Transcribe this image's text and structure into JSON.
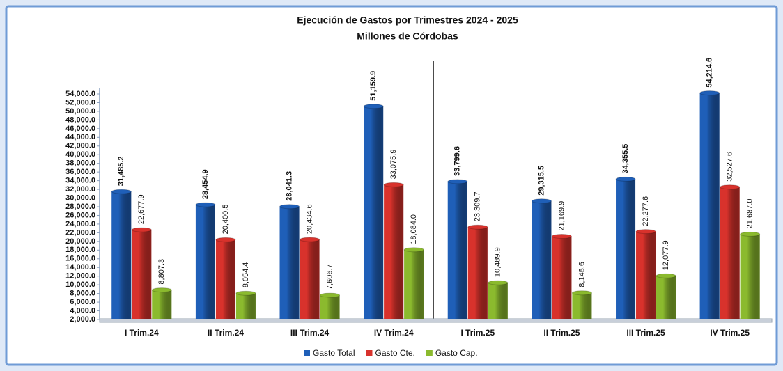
{
  "chart_data": {
    "type": "bar",
    "title": "Ejecución de  Gastos por Trimestres 2024 - 2025",
    "subtitle": "Millones de Córdobas",
    "categories": [
      "I Trim.24",
      "II Trim.24",
      "III Trim.24",
      "IV Trim.24",
      "I Trim.25",
      "II Trim.25",
      "III Trim.25",
      "IV Trim.25"
    ],
    "series": [
      {
        "name": "Gasto Total",
        "color": "#1f5fb8",
        "values": [
          31485.2,
          28454.9,
          28041.3,
          51159.9,
          33799.6,
          29315.5,
          34355.5,
          54214.6
        ],
        "value_labels": [
          "31,485.2",
          "28,454.9",
          "28,041.3",
          "51,159.9",
          "33,799.6",
          "29,315.5",
          "34,355.5",
          "54,214.6"
        ]
      },
      {
        "name": "Gasto Cte.",
        "color": "#d8322c",
        "values": [
          22677.9,
          20400.5,
          20434.6,
          33075.9,
          23309.7,
          21169.9,
          22277.6,
          32527.6
        ],
        "value_labels": [
          "22,677.9",
          "20,400.5",
          "20,434.6",
          "33,075.9",
          "23,309.7",
          "21,169.9",
          "22,277.6",
          "32,527.6"
        ]
      },
      {
        "name": "Gasto Cap.",
        "color": "#8bba2e",
        "values": [
          8807.3,
          8054.4,
          7606.7,
          18084.0,
          10489.9,
          8145.6,
          12077.9,
          21687.0
        ],
        "value_labels": [
          "8,807.3",
          "8,054.4",
          "7,606.7",
          "18,084.0",
          "10,489.9",
          "8,145.6",
          "12,077.9",
          "21,687.0"
        ]
      }
    ],
    "ylim": [
      2000,
      54000
    ],
    "yticks": [
      {
        "value": 2000,
        "label": "2,000.0"
      },
      {
        "value": 4000,
        "label": "4,000.0"
      },
      {
        "value": 6000,
        "label": "6,000.0"
      },
      {
        "value": 8000,
        "label": "8,000.0"
      },
      {
        "value": 10000,
        "label": "10,000.0"
      },
      {
        "value": 12000,
        "label": "12,000.0"
      },
      {
        "value": 14000,
        "label": "14,000.0"
      },
      {
        "value": 16000,
        "label": "16,000.0"
      },
      {
        "value": 18000,
        "label": "18,000.0"
      },
      {
        "value": 20000,
        "label": "20,000.0"
      },
      {
        "value": 22000,
        "label": "22,000.0"
      },
      {
        "value": 24000,
        "label": "24,000.0"
      },
      {
        "value": 26000,
        "label": "26,000.0"
      },
      {
        "value": 28000,
        "label": "28,000.0"
      },
      {
        "value": 30000,
        "label": "30,000.0"
      },
      {
        "value": 32000,
        "label": "32,000.0"
      },
      {
        "value": 34000,
        "label": "34,000.0"
      },
      {
        "value": 36000,
        "label": "36,000.0"
      },
      {
        "value": 38000,
        "label": "38,000.0"
      },
      {
        "value": 40000,
        "label": "40,000.0"
      },
      {
        "value": 42000,
        "label": "42,000.0"
      },
      {
        "value": 44000,
        "label": "44,000.0"
      },
      {
        "value": 46000,
        "label": "46,000.0"
      },
      {
        "value": 48000,
        "label": "48,000.0"
      },
      {
        "value": 50000,
        "label": "50,000.0"
      },
      {
        "value": 52000,
        "label": "52,000.0"
      },
      {
        "value": 54000,
        "label": "54,000.0"
      }
    ],
    "grid": false,
    "legend": "bottom"
  }
}
